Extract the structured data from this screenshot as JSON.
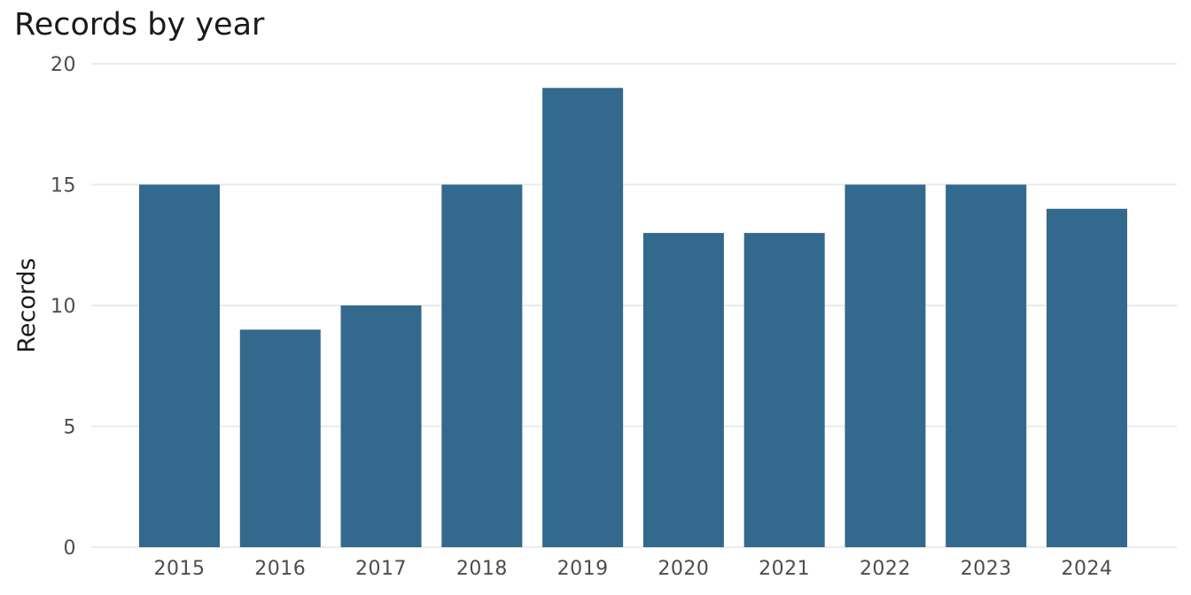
{
  "chart_data": {
    "type": "bar",
    "title": "Records by year",
    "xlabel": "",
    "ylabel": "Records",
    "categories": [
      "2015",
      "2016",
      "2017",
      "2018",
      "2019",
      "2020",
      "2021",
      "2022",
      "2023",
      "2024"
    ],
    "values": [
      15,
      9,
      10,
      15,
      19,
      13,
      13,
      15,
      15,
      14
    ],
    "ylim": [
      0,
      20
    ],
    "yticks": [
      "0",
      "5",
      "10",
      "15",
      "20"
    ],
    "grid": true,
    "legend": "none",
    "bar_color": "#32698C",
    "grid_color": "#EBEBEB"
  }
}
